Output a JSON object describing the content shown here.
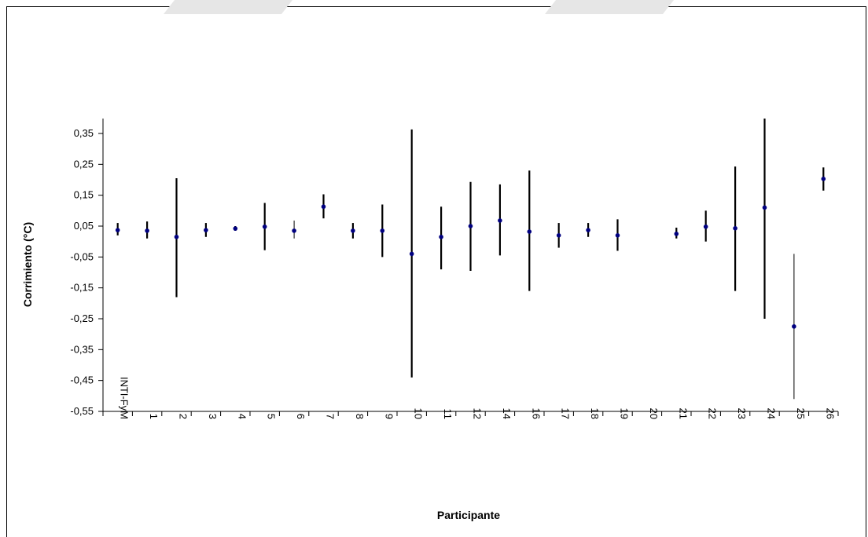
{
  "chart_data": {
    "type": "scatter",
    "title": "",
    "xlabel": "Participante",
    "ylabel": "Corrimiento (°C)",
    "ylim": [
      -0.55,
      0.4
    ],
    "yticks": [
      "0,35",
      "0,25",
      "0,15",
      "0,05",
      "-0,05",
      "-0,15",
      "-0,25",
      "-0,35",
      "-0,45",
      "-0,55"
    ],
    "categories": [
      "INTI-FyM",
      "1",
      "2",
      "3",
      "4",
      "5",
      "6",
      "7",
      "8",
      "9",
      "10",
      "11",
      "12",
      "14",
      "16",
      "17",
      "18",
      "19",
      "20",
      "21",
      "22",
      "23",
      "24",
      "25",
      "26"
    ],
    "series": [
      {
        "values": [
          0.037,
          0.035,
          0.015,
          0.037,
          0.042,
          0.048,
          0.035,
          0.113,
          0.035,
          0.035,
          -0.04,
          0.015,
          0.05,
          0.068,
          0.032,
          0.02,
          0.037,
          0.02,
          null,
          0.025,
          0.048,
          0.043,
          0.11,
          -0.275,
          0.203
        ],
        "err_low": [
          0.02,
          0.01,
          -0.18,
          0.015,
          0.035,
          -0.028,
          0.01,
          0.075,
          0.01,
          -0.05,
          -0.44,
          -0.09,
          -0.095,
          -0.045,
          -0.16,
          -0.02,
          0.015,
          -0.03,
          null,
          0.01,
          0.0,
          -0.16,
          -0.25,
          -0.51,
          0.165
        ],
        "err_high": [
          0.06,
          0.065,
          0.205,
          0.06,
          0.05,
          0.125,
          0.068,
          0.153,
          0.06,
          0.12,
          0.363,
          0.113,
          0.193,
          0.185,
          0.23,
          0.06,
          0.06,
          0.072,
          null,
          0.045,
          0.1,
          0.243,
          0.4,
          -0.04,
          0.24
        ],
        "err_thin": [
          false,
          false,
          false,
          false,
          false,
          false,
          true,
          false,
          false,
          false,
          false,
          false,
          false,
          false,
          false,
          false,
          false,
          false,
          false,
          false,
          false,
          false,
          false,
          true,
          false
        ]
      }
    ],
    "grid": false,
    "legend": "none",
    "colors": {
      "marker": "#000080",
      "errorbar": "#000000",
      "axis": "#000000",
      "watermark": "#e6e6e6"
    }
  }
}
